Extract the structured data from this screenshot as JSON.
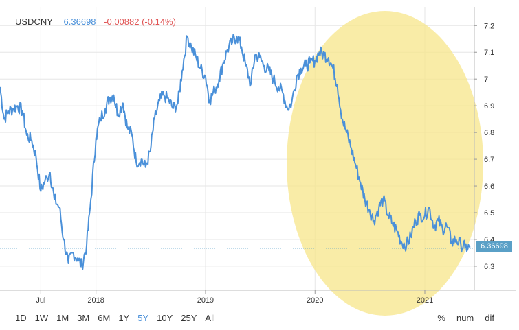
{
  "header": {
    "symbol": "USDCNY",
    "price": "6.36698",
    "change": "-0.00882 (-0.14%)"
  },
  "last_price_tag": "6.36698",
  "ranges": [
    "1D",
    "1W",
    "1M",
    "3M",
    "6M",
    "1Y",
    "5Y",
    "10Y",
    "25Y",
    "All"
  ],
  "active_range": "5Y",
  "modes": [
    "%",
    "num",
    "dif"
  ],
  "colors": {
    "line": "#4a90d9",
    "highlight": "#f7e68a",
    "down": "#e05555"
  },
  "chart_data": {
    "type": "line",
    "title": "USDCNY",
    "xlabel": "",
    "ylabel": "",
    "ylim": [
      6.21,
      7.27
    ],
    "x_range": [
      "2017-02-15",
      "2021-06-15"
    ],
    "y_ticks": [
      6.3,
      6.4,
      6.5,
      6.6,
      6.7,
      6.8,
      6.9,
      7,
      7.1,
      7.2
    ],
    "x_ticks": [
      {
        "label": "Jul",
        "date": "2017-07-01"
      },
      {
        "label": "2018",
        "date": "2018-01-01"
      },
      {
        "label": "2019",
        "date": "2019-01-01"
      },
      {
        "label": "2020",
        "date": "2020-01-01"
      },
      {
        "label": "2021",
        "date": "2021-01-01"
      }
    ],
    "last_value": 6.36698,
    "annotation": "yellow highlighted circle over 2019-11 to 2021-06 decline",
    "series": [
      {
        "x": [
          "2017-02-15",
          "2017-03-01",
          "2017-03-15",
          "2017-04-01",
          "2017-04-15",
          "2017-05-01",
          "2017-05-15",
          "2017-06-01",
          "2017-06-15",
          "2017-07-01",
          "2017-07-15",
          "2017-08-01",
          "2017-08-15",
          "2017-09-01",
          "2017-09-15",
          "2017-10-01",
          "2017-10-15",
          "2017-11-01",
          "2017-11-15",
          "2017-12-01",
          "2017-12-15",
          "2018-01-01",
          "2018-01-15",
          "2018-02-01",
          "2018-02-15",
          "2018-03-01",
          "2018-03-15",
          "2018-04-01",
          "2018-04-15",
          "2018-05-01",
          "2018-05-15",
          "2018-06-01",
          "2018-06-15",
          "2018-07-01",
          "2018-07-15",
          "2018-08-01",
          "2018-08-15",
          "2018-09-01",
          "2018-09-15",
          "2018-10-01",
          "2018-10-15",
          "2018-11-01",
          "2018-11-15",
          "2018-12-01",
          "2018-12-15",
          "2019-01-01",
          "2019-01-15",
          "2019-02-01",
          "2019-02-15",
          "2019-03-01",
          "2019-03-15",
          "2019-04-01",
          "2019-04-15",
          "2019-05-01",
          "2019-05-15",
          "2019-06-01",
          "2019-06-15",
          "2019-07-01",
          "2019-07-15",
          "2019-08-01",
          "2019-08-15",
          "2019-09-01",
          "2019-09-15",
          "2019-10-01",
          "2019-10-15",
          "2019-11-01",
          "2019-11-15",
          "2019-12-01",
          "2019-12-15",
          "2020-01-01",
          "2020-01-15",
          "2020-02-01",
          "2020-02-15",
          "2020-03-01",
          "2020-03-15",
          "2020-04-01",
          "2020-04-15",
          "2020-05-01",
          "2020-05-15",
          "2020-06-01",
          "2020-06-15",
          "2020-07-01",
          "2020-07-15",
          "2020-08-01",
          "2020-08-15",
          "2020-09-01",
          "2020-09-15",
          "2020-10-01",
          "2020-10-15",
          "2020-11-01",
          "2020-11-15",
          "2020-12-01",
          "2020-12-15",
          "2021-01-01",
          "2021-01-15",
          "2021-02-01",
          "2021-02-15",
          "2021-03-01",
          "2021-03-15",
          "2021-04-01",
          "2021-04-15",
          "2021-05-01",
          "2021-05-15",
          "2021-06-01"
        ],
        "values": [
          6.97,
          6.85,
          6.88,
          6.89,
          6.9,
          6.88,
          6.79,
          6.77,
          6.71,
          6.58,
          6.62,
          6.65,
          6.55,
          6.52,
          6.4,
          6.31,
          6.35,
          6.33,
          6.3,
          6.38,
          6.55,
          6.78,
          6.85,
          6.89,
          6.93,
          6.94,
          6.87,
          6.91,
          6.82,
          6.79,
          6.69,
          6.7,
          6.67,
          6.73,
          6.85,
          6.92,
          6.94,
          6.92,
          6.89,
          6.91,
          7.03,
          7.16,
          7.12,
          7.08,
          7.04,
          7.01,
          6.92,
          6.96,
          7.0,
          7.06,
          7.11,
          7.14,
          7.16,
          7.12,
          7.05,
          6.98,
          7.09,
          7.08,
          7.05,
          7.03,
          7.0,
          6.97,
          6.95,
          6.89,
          6.91,
          7.01,
          7.04,
          7.05,
          7.06,
          7.07,
          7.1,
          7.09,
          7.08,
          7.04,
          6.98,
          6.85,
          6.8,
          6.74,
          6.68,
          6.61,
          6.55,
          6.51,
          6.47,
          6.52,
          6.55,
          6.49,
          6.46,
          6.43,
          6.39,
          6.38,
          6.41,
          6.47,
          6.49,
          6.49,
          6.52,
          6.45,
          6.47,
          6.44,
          6.45,
          6.39,
          6.4,
          6.38,
          6.37,
          6.37
        ]
      }
    ]
  }
}
